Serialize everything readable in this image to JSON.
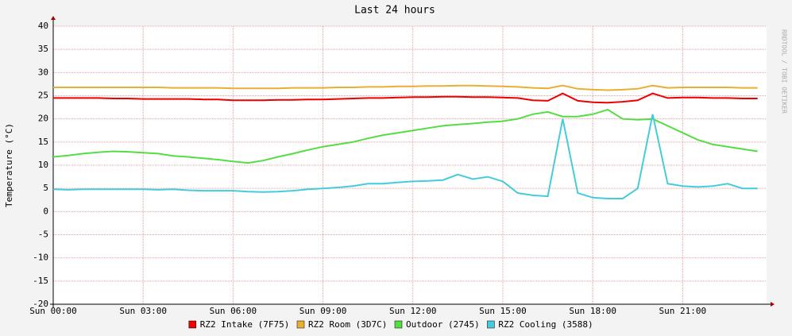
{
  "chart_data": {
    "type": "line",
    "title": "Last 24 hours",
    "y_label": "Temperature (°C)",
    "watermark": "RRDTOOL / TOBI OETIKER",
    "x": [
      0,
      0.5,
      1,
      1.5,
      2,
      2.5,
      3,
      3.5,
      4,
      4.5,
      5,
      5.5,
      6,
      6.5,
      7,
      7.5,
      8,
      8.5,
      9,
      9.5,
      10,
      10.5,
      11,
      11.5,
      12,
      12.5,
      13,
      13.5,
      14,
      14.5,
      15,
      15.5,
      16,
      16.5,
      17,
      17.5,
      18,
      18.5,
      19,
      19.5,
      20,
      20.5,
      21,
      21.5,
      22,
      22.5,
      23,
      23.5
    ],
    "series": [
      {
        "name": "RZ2 Intake (7F75)",
        "color": "#ee0000",
        "values": [
          24.5,
          24.5,
          24.5,
          24.5,
          24.4,
          24.4,
          24.3,
          24.3,
          24.3,
          24.3,
          24.2,
          24.2,
          24.0,
          24.0,
          24.0,
          24.1,
          24.1,
          24.2,
          24.2,
          24.3,
          24.4,
          24.5,
          24.5,
          24.6,
          24.7,
          24.7,
          24.8,
          24.8,
          24.7,
          24.7,
          24.6,
          24.5,
          24.0,
          23.9,
          25.5,
          23.9,
          23.6,
          23.5,
          23.7,
          24.0,
          25.5,
          24.5,
          24.6,
          24.6,
          24.5,
          24.5,
          24.4,
          24.4
        ]
      },
      {
        "name": "RZ2 Room (3D7C)",
        "color": "#e8b030",
        "values": [
          26.8,
          26.8,
          26.8,
          26.8,
          26.8,
          26.8,
          26.8,
          26.8,
          26.7,
          26.7,
          26.7,
          26.7,
          26.6,
          26.6,
          26.6,
          26.6,
          26.7,
          26.7,
          26.7,
          26.8,
          26.8,
          26.9,
          26.9,
          27.0,
          27.0,
          27.1,
          27.1,
          27.2,
          27.2,
          27.1,
          27.0,
          26.9,
          26.7,
          26.6,
          27.2,
          26.5,
          26.3,
          26.2,
          26.3,
          26.5,
          27.2,
          26.7,
          26.8,
          26.8,
          26.8,
          26.8,
          26.7,
          26.7
        ]
      },
      {
        "name": "Outdoor (2745)",
        "color": "#55dd44",
        "values": [
          11.8,
          12.1,
          12.5,
          12.8,
          13.0,
          12.9,
          12.7,
          12.5,
          12.0,
          11.8,
          11.5,
          11.2,
          10.8,
          10.5,
          11.0,
          11.8,
          12.5,
          13.3,
          14.0,
          14.5,
          15.0,
          15.8,
          16.5,
          17.0,
          17.5,
          18.0,
          18.5,
          18.8,
          19.0,
          19.3,
          19.5,
          20.0,
          21.0,
          21.5,
          20.5,
          20.5,
          21.0,
          22.0,
          20.0,
          19.8,
          20.0,
          18.5,
          17.0,
          15.5,
          14.5,
          14.0,
          13.5,
          13.0
        ]
      },
      {
        "name": "RZ2 Cooling (3588)",
        "color": "#44ccdd",
        "values": [
          4.8,
          4.7,
          4.8,
          4.8,
          4.8,
          4.8,
          4.8,
          4.7,
          4.8,
          4.6,
          4.5,
          4.5,
          4.5,
          4.3,
          4.2,
          4.3,
          4.5,
          4.8,
          5.0,
          5.2,
          5.5,
          6.0,
          6.0,
          6.3,
          6.5,
          6.6,
          6.8,
          8.0,
          7.0,
          7.5,
          6.5,
          4.0,
          3.5,
          3.3,
          20.0,
          4.0,
          3.0,
          2.8,
          2.8,
          5.0,
          21.0,
          6.0,
          5.5,
          5.3,
          5.5,
          6.0,
          5.0,
          5.0
        ]
      }
    ],
    "xlim": [
      0,
      23.8
    ],
    "xticks": [
      {
        "value": 0,
        "label": "Sun 00:00"
      },
      {
        "value": 3,
        "label": "Sun 03:00"
      },
      {
        "value": 6,
        "label": "Sun 06:00"
      },
      {
        "value": 9,
        "label": "Sun 09:00"
      },
      {
        "value": 12,
        "label": "Sun 12:00"
      },
      {
        "value": 15,
        "label": "Sun 15:00"
      },
      {
        "value": 18,
        "label": "Sun 18:00"
      },
      {
        "value": 21,
        "label": "Sun 21:00"
      }
    ],
    "ylim": [
      -20,
      40
    ],
    "yticks": [
      -20,
      -15,
      -10,
      -5,
      0,
      5,
      10,
      15,
      20,
      25,
      30,
      35,
      40
    ],
    "grid": true
  }
}
